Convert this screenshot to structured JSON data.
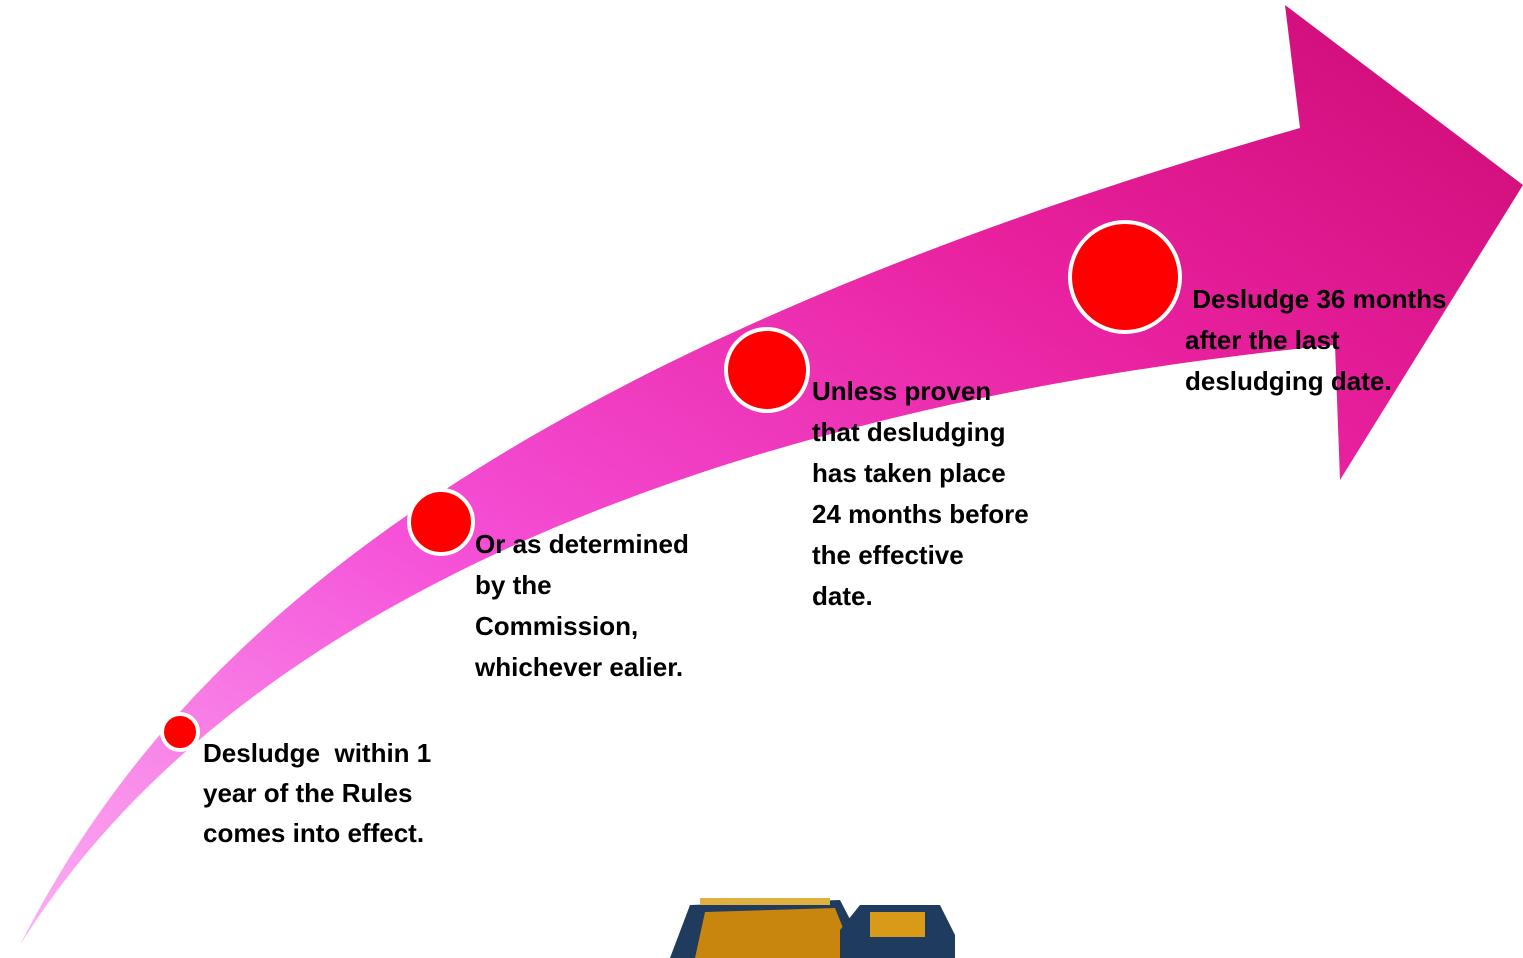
{
  "steps": [
    {
      "lines": [
        "Desludge  within 1",
        "year of the Rules",
        "comes into effect."
      ]
    },
    {
      "lines": [
        "Or as determined",
        "by the",
        "Commission,",
        "whichever ealier."
      ]
    },
    {
      "lines": [
        "Unless proven",
        "that desludging",
        "has taken place",
        "24 months before",
        "the effective",
        "date."
      ]
    },
    {
      "lines": [
        " Desludge 36 months",
        "after the last",
        "desludging date."
      ]
    }
  ]
}
